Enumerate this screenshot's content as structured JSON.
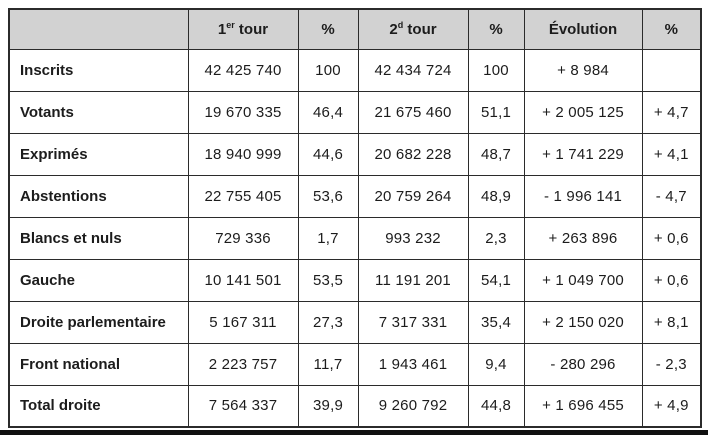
{
  "page": {
    "header_bg": "#d2d2d2",
    "border_color": "#2b2b2b",
    "bottom_bar_color": "#101010"
  },
  "table": {
    "header": {
      "empty": "",
      "tour1": {
        "base": "1",
        "sup": "er",
        "rest": " tour"
      },
      "tour2": {
        "base": "2",
        "sup": "d",
        "rest": " tour"
      },
      "pct": "%",
      "evolution": "Évolution"
    },
    "rows": [
      {
        "label": "Inscrits",
        "cells": [
          "42 425 740",
          "100",
          "42 434 724",
          "100",
          "+ 8 984",
          ""
        ]
      },
      {
        "label": "Votants",
        "cells": [
          "19 670 335",
          "46,4",
          "21 675 460",
          "51,1",
          "+ 2 005 125",
          "+ 4,7"
        ]
      },
      {
        "label": "Exprimés",
        "cells": [
          "18 940 999",
          "44,6",
          "20 682 228",
          "48,7",
          "+ 1 741 229",
          "+ 4,1"
        ]
      },
      {
        "label": "Abstentions",
        "cells": [
          "22 755 405",
          "53,6",
          "20 759 264",
          "48,9",
          "- 1 996 141",
          "- 4,7"
        ]
      },
      {
        "label": "Blancs et nuls",
        "cells": [
          "729 336",
          "1,7",
          "993 232",
          "2,3",
          "+ 263 896",
          "+ 0,6"
        ]
      },
      {
        "label": "Gauche",
        "cells": [
          "10 141 501",
          "53,5",
          "11 191 201",
          "54,1",
          "+ 1 049 700",
          "+ 0,6"
        ]
      },
      {
        "label": "Droite parlementaire",
        "cells": [
          "5 167 311",
          "27,3",
          "7 317 331",
          "35,4",
          "+ 2 150 020",
          "+ 8,1"
        ]
      },
      {
        "label": "Front national",
        "cells": [
          "2 223 757",
          "11,7",
          "1 943 461",
          "9,4",
          "- 280 296",
          "- 2,3"
        ]
      },
      {
        "label": "Total droite",
        "cells": [
          "7 564 337",
          "39,9",
          "9 260 792",
          "44,8",
          "+ 1 696 455",
          "+ 4,9"
        ]
      }
    ]
  }
}
